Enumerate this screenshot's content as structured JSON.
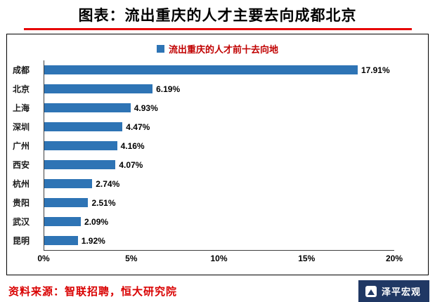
{
  "header": {
    "title": "图表：流出重庆的人才主要去向成都北京"
  },
  "chart_data": {
    "type": "bar",
    "orientation": "horizontal",
    "title": "流出重庆的人才前十去向地",
    "categories": [
      "成都",
      "北京",
      "上海",
      "深圳",
      "广州",
      "西安",
      "杭州",
      "贵阳",
      "武汉",
      "昆明"
    ],
    "values": [
      17.91,
      6.19,
      4.93,
      4.47,
      4.16,
      4.07,
      2.74,
      2.51,
      2.09,
      1.92
    ],
    "value_labels": [
      "17.91%",
      "6.19%",
      "4.93%",
      "4.47%",
      "4.16%",
      "4.07%",
      "2.74%",
      "2.51%",
      "2.09%",
      "1.92%"
    ],
    "xlim": [
      0,
      20
    ],
    "x_ticks": [
      "0%",
      "5%",
      "10%",
      "15%",
      "20%"
    ],
    "bar_color": "#2e74b5",
    "legend_position": "top",
    "grid": false
  },
  "footer": {
    "source": "资料来源：智联招聘，恒大研究院",
    "logo_text": "泽平宏观"
  },
  "icons": {
    "logo_icon": "mountain-icon"
  },
  "colors": {
    "title_rule": "#e60000",
    "legend_text": "#c00000",
    "source_text": "#d90000",
    "logo_background": "#203864",
    "bar": "#2e74b5"
  }
}
